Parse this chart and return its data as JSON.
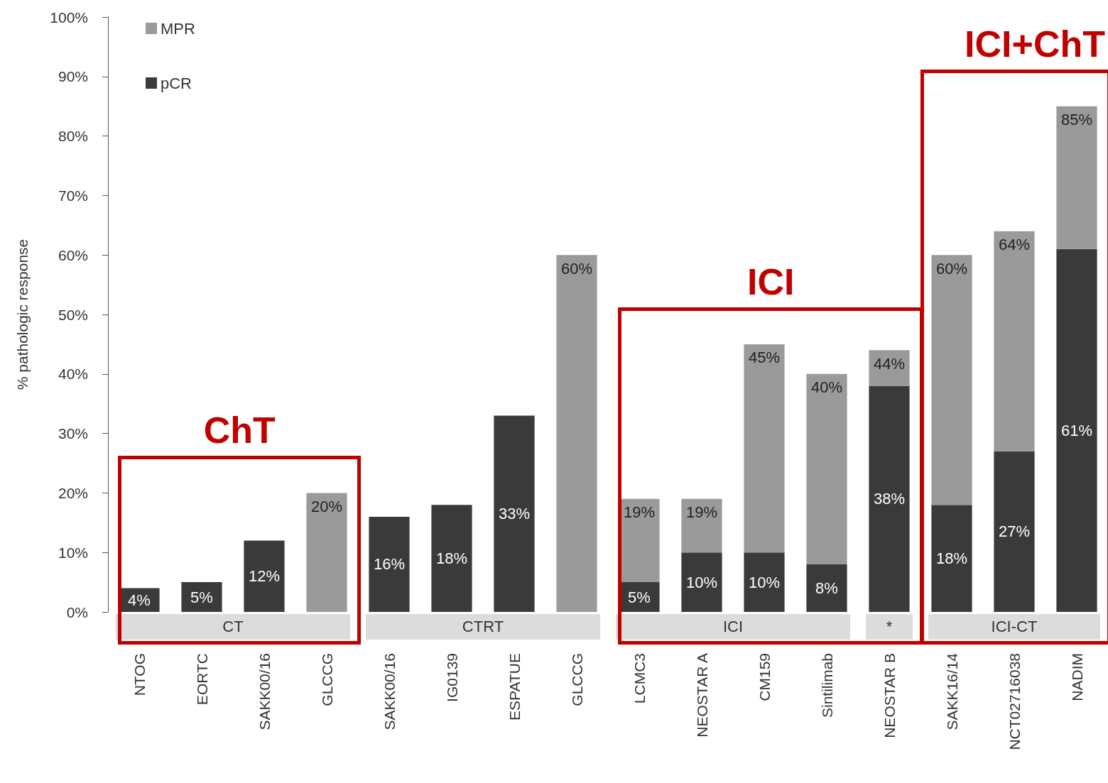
{
  "chart_data": {
    "type": "bar",
    "stacked": true,
    "ylabel": "% pathologic response",
    "categories": [
      "NTOG",
      "EORTC",
      "SAKK00/16",
      "GLCCG",
      "SAKK00/16",
      "IG0139",
      "ESPATUE",
      "GLCCG",
      "LCMC3",
      "NEOSTAR A",
      "CM159",
      "Sintilimab",
      "NEOSTAR B",
      "SAKK16/14",
      "NCT02716038",
      "NADIM"
    ],
    "series": [
      {
        "name": "pCR",
        "color": "#3a3a3a",
        "values": [
          4,
          5,
          12,
          null,
          16,
          18,
          33,
          null,
          5,
          10,
          10,
          8,
          38,
          18,
          27,
          61
        ],
        "value_labels": [
          "4%",
          "5%",
          "12%",
          null,
          "16%",
          "18%",
          "33%",
          null,
          "5%",
          "10%",
          "10%",
          "8%",
          "38%",
          "18%",
          "27%",
          "61%"
        ]
      },
      {
        "name": "MPR",
        "color": "#9a9a9a",
        "values": [
          null,
          null,
          null,
          20,
          null,
          null,
          null,
          60,
          14,
          9,
          35,
          32,
          6,
          42,
          37,
          24
        ]
      }
    ],
    "totals": [
      null,
      null,
      null,
      "20%",
      null,
      null,
      null,
      "60%",
      "19%",
      "19%",
      "45%",
      "40%",
      "44%",
      "60%",
      "64%",
      "85%"
    ],
    "ylim": [
      0,
      100
    ],
    "yticks": [
      {
        "value": 0,
        "label": "0%"
      },
      {
        "value": 10,
        "label": "10%"
      },
      {
        "value": 20,
        "label": "20%"
      },
      {
        "value": 30,
        "label": "30%"
      },
      {
        "value": 40,
        "label": "40%"
      },
      {
        "value": 50,
        "label": "50%"
      },
      {
        "value": 60,
        "label": "60%"
      },
      {
        "value": 70,
        "label": "70%"
      },
      {
        "value": 80,
        "label": "80%"
      },
      {
        "value": 90,
        "label": "90%"
      },
      {
        "value": 100,
        "label": "100%"
      }
    ],
    "grid": false,
    "legend": "top left",
    "annotations": [
      "CT",
      "CTRT",
      "ICI",
      "*",
      "ICI-CT",
      "ChT",
      "ICI",
      "ICI+ChT"
    ]
  }
}
